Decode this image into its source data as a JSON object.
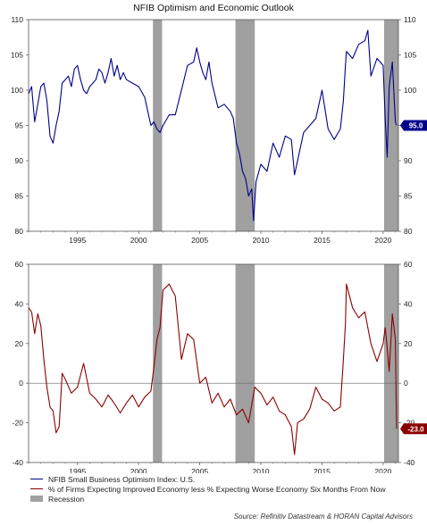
{
  "title": "NFIB Optimism and Economic Outlook",
  "source": "Source: Refinitiv Datastream & HORAN Capital Advisors",
  "legend": {
    "series1": "NFIB Small Business Optimism Index: U.S.",
    "series2": "% of Firms Expecting Improved Economy less % Expecting Worse Economy Six Months From Now",
    "recession": "Recession"
  },
  "colors": {
    "series1": "#00008b",
    "series2": "#8b0000",
    "recession": "#a0a0a0",
    "axis": "#555555"
  },
  "chart_data": [
    {
      "type": "line",
      "ylim": [
        80,
        110
      ],
      "yticks": [
        80,
        85,
        90,
        95,
        100,
        105,
        110
      ],
      "xlim": [
        1991.0,
        2021.25
      ],
      "xticks": [
        1995,
        2000,
        2005,
        2010,
        2015,
        2020
      ],
      "grid": false,
      "recessions": [
        [
          2001.17,
          2001.92
        ],
        [
          2007.92,
          2009.5
        ],
        [
          2020.08,
          2021.25
        ]
      ],
      "last_value_label": "95.0",
      "series": [
        {
          "name": "NFIB Small Business Optimism Index: U.S.",
          "x": [
            1991.0,
            1991.25,
            1991.5,
            1991.75,
            1992.0,
            1992.25,
            1992.5,
            1992.75,
            1993.0,
            1993.25,
            1993.5,
            1993.75,
            1994.0,
            1994.25,
            1994.5,
            1994.75,
            1995.0,
            1995.25,
            1995.5,
            1995.75,
            1996.0,
            1996.25,
            1996.5,
            1996.75,
            1997.0,
            1997.25,
            1997.5,
            1997.75,
            1998.0,
            1998.25,
            1998.5,
            1998.75,
            1999.0,
            1999.5,
            2000.0,
            2000.5,
            2001.0,
            2001.25,
            2001.5,
            2001.75,
            2002.0,
            2002.5,
            2003.0,
            2003.5,
            2004.0,
            2004.5,
            2004.75,
            2005.0,
            2005.25,
            2005.5,
            2005.75,
            2006.0,
            2006.5,
            2007.0,
            2007.5,
            2007.75,
            2008.0,
            2008.25,
            2008.5,
            2008.75,
            2009.0,
            2009.25,
            2009.4,
            2009.6,
            2010.0,
            2010.5,
            2011.0,
            2011.5,
            2012.0,
            2012.5,
            2012.75,
            2013.0,
            2013.5,
            2014.0,
            2014.5,
            2015.0,
            2015.5,
            2016.0,
            2016.5,
            2016.75,
            2016.92,
            2017.0,
            2017.5,
            2018.0,
            2018.5,
            2018.75,
            2019.0,
            2019.5,
            2020.0,
            2020.17,
            2020.33,
            2020.5,
            2020.75,
            2021.0,
            2021.1
          ],
          "values": [
            99.5,
            100.5,
            95.5,
            98.0,
            100.5,
            101.0,
            98.5,
            93.5,
            92.5,
            95.0,
            97.0,
            101.0,
            101.5,
            102.0,
            100.5,
            103.0,
            103.5,
            101.5,
            100.0,
            99.5,
            100.5,
            101.0,
            101.5,
            103.0,
            102.5,
            101.0,
            102.5,
            104.5,
            102.0,
            103.5,
            101.5,
            102.5,
            101.5,
            101.0,
            100.5,
            99.0,
            95.0,
            95.5,
            94.5,
            94.0,
            95.0,
            96.5,
            96.5,
            100.0,
            103.5,
            104.0,
            106.0,
            104.0,
            102.5,
            101.5,
            104.0,
            101.0,
            97.5,
            98.0,
            97.0,
            96.0,
            92.5,
            91.0,
            88.5,
            87.5,
            85.0,
            86.0,
            81.5,
            87.0,
            89.5,
            88.5,
            92.5,
            90.5,
            93.5,
            93.0,
            88.0,
            90.0,
            94.0,
            95.0,
            96.0,
            100.0,
            94.5,
            93.0,
            94.5,
            98.5,
            103.5,
            105.5,
            104.5,
            106.5,
            107.0,
            108.5,
            102.0,
            104.5,
            103.5,
            96.0,
            90.5,
            100.5,
            104.0,
            95.5,
            95.0
          ]
        }
      ]
    },
    {
      "type": "line",
      "ylim": [
        -40,
        60
      ],
      "yticks": [
        -40,
        -20,
        0,
        20,
        40,
        60
      ],
      "xlim": [
        1991.0,
        2021.25
      ],
      "xticks": [
        1995,
        2000,
        2005,
        2010,
        2015,
        2020
      ],
      "grid": false,
      "zero_line": true,
      "recessions": [
        [
          2001.17,
          2001.92
        ],
        [
          2007.92,
          2009.5
        ],
        [
          2020.08,
          2021.25
        ]
      ],
      "last_value_label": "-23.0",
      "series": [
        {
          "name": "% of Firms Expecting Improved Economy less % Expecting Worse Economy Six Months From Now",
          "x": [
            1991.0,
            1991.25,
            1991.5,
            1991.75,
            1992.0,
            1992.25,
            1992.5,
            1992.75,
            1993.0,
            1993.25,
            1993.5,
            1993.75,
            1994.0,
            1994.5,
            1995.0,
            1995.5,
            1996.0,
            1996.5,
            1997.0,
            1997.5,
            1998.0,
            1998.5,
            1999.0,
            1999.5,
            2000.0,
            2000.5,
            2001.0,
            2001.25,
            2001.5,
            2001.75,
            2002.0,
            2002.5,
            2003.0,
            2003.25,
            2003.5,
            2004.0,
            2004.5,
            2005.0,
            2005.5,
            2006.0,
            2006.5,
            2007.0,
            2007.5,
            2008.0,
            2008.5,
            2009.0,
            2009.5,
            2010.0,
            2010.5,
            2011.0,
            2011.5,
            2012.0,
            2012.5,
            2012.75,
            2013.0,
            2013.5,
            2014.0,
            2014.5,
            2015.0,
            2015.5,
            2016.0,
            2016.5,
            2016.75,
            2016.92,
            2017.0,
            2017.5,
            2018.0,
            2018.5,
            2019.0,
            2019.5,
            2020.0,
            2020.17,
            2020.33,
            2020.5,
            2020.75,
            2021.0,
            2021.1
          ],
          "values": [
            38.0,
            36.0,
            25.0,
            35.0,
            29.0,
            12.0,
            -2.0,
            -12.0,
            -14.0,
            -25.0,
            -22.0,
            5.0,
            2.0,
            -5.0,
            -2.0,
            10.0,
            -5.0,
            -8.0,
            -12.0,
            -6.0,
            -10.0,
            -15.0,
            -10.0,
            -6.0,
            -12.0,
            -7.0,
            -4.0,
            8.0,
            22.0,
            28.0,
            47.0,
            50.0,
            44.0,
            28.0,
            12.0,
            25.0,
            22.0,
            0.0,
            3.0,
            -10.0,
            -5.0,
            -12.0,
            -8.0,
            -16.0,
            -13.0,
            -20.0,
            -2.0,
            -5.0,
            -11.0,
            -7.0,
            -14.0,
            -16.0,
            -22.0,
            -36.0,
            -20.0,
            -18.0,
            -13.0,
            -2.0,
            -8.0,
            -10.0,
            -14.0,
            -12.0,
            12.0,
            30.0,
            50.0,
            38.0,
            33.0,
            36.0,
            20.0,
            11.0,
            20.0,
            28.0,
            18.0,
            6.0,
            35.0,
            22.0,
            -23.0
          ]
        }
      ]
    }
  ]
}
